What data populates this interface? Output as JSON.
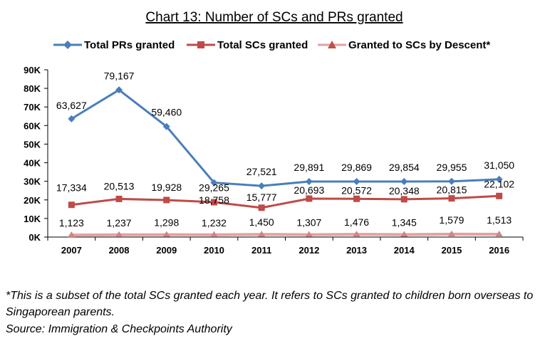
{
  "chart_data": {
    "type": "line",
    "title": "Chart 13: Number of SCs and PRs granted",
    "xlabel": "",
    "ylabel": "",
    "categories": [
      "2007",
      "2008",
      "2009",
      "2010",
      "2011",
      "2012",
      "2013",
      "2014",
      "2015",
      "2016"
    ],
    "ylim": [
      0,
      90000
    ],
    "yticks": [
      0,
      10000,
      20000,
      30000,
      40000,
      50000,
      60000,
      70000,
      80000,
      90000
    ],
    "ytick_labels": [
      "0K",
      "10K",
      "20K",
      "30K",
      "40K",
      "50K",
      "60K",
      "70K",
      "80K",
      "90K"
    ],
    "grid": false,
    "legend_position": "top",
    "series": [
      {
        "name": "Total PRs granted",
        "color": "#4a7ebb",
        "marker": "diamond",
        "values": [
          63627,
          79167,
          59460,
          29265,
          27521,
          29891,
          29869,
          29854,
          29955,
          31050
        ],
        "labels": [
          "63,627",
          "79,167",
          "59,460",
          "29,265",
          "27,521",
          "29,891",
          "29,869",
          "29,854",
          "29,955",
          "31,050"
        ]
      },
      {
        "name": "Total SCs granted",
        "color": "#be4b48",
        "marker": "square",
        "values": [
          17334,
          20513,
          19928,
          18758,
          15777,
          20693,
          20572,
          20348,
          20815,
          22102
        ],
        "labels": [
          "17,334",
          "20,513",
          "19,928",
          "18,758",
          "15,777",
          "20,693",
          "20,572",
          "20,348",
          "20,815",
          "22,102"
        ]
      },
      {
        "name": "Granted to SCs by Descent*",
        "color": "#e6a0a0",
        "marker": "triangle",
        "values": [
          1123,
          1237,
          1298,
          1232,
          1450,
          1307,
          1476,
          1345,
          1579,
          1513
        ],
        "labels": [
          "1,123",
          "1,237",
          "1,298",
          "1,232",
          "1,450",
          "1,307",
          "1,476",
          "1,345",
          "1,579",
          "1,513"
        ]
      }
    ]
  },
  "footnote": {
    "note": "*This is a subset of the total SCs granted each year. It refers to SCs granted to children born overseas to Singaporean parents.",
    "source": "Source: Immigration & Checkpoints Authority"
  }
}
